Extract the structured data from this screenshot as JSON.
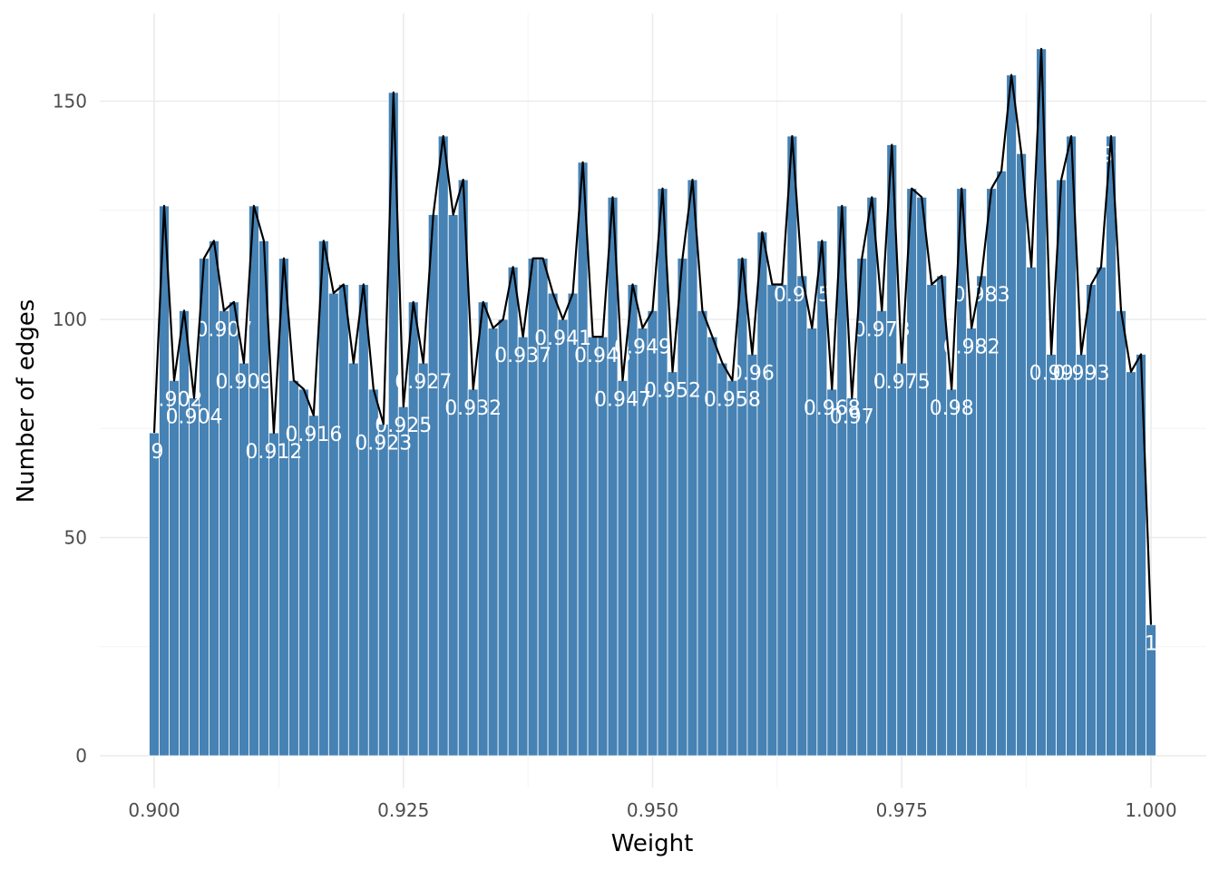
{
  "chart_data": {
    "type": "bar",
    "xlabel": "Weight",
    "ylabel": "Number of edges",
    "xlim": [
      0.9,
      1.0
    ],
    "ylim": [
      0,
      160
    ],
    "x_ticks": [
      "0.900",
      "0.925",
      "0.950",
      "0.975",
      "1.000"
    ],
    "x_tick_values": [
      0.9,
      0.925,
      0.95,
      0.975,
      1.0
    ],
    "y_ticks": [
      "0",
      "50",
      "100",
      "150"
    ],
    "y_tick_values": [
      0,
      50,
      100,
      150
    ],
    "grid": true,
    "bar_color": "#4682b4",
    "line_color": "#000000",
    "label_color": "#ffffff",
    "bin_width": 0.001,
    "x": [
      0.9,
      0.901,
      0.902,
      0.903,
      0.904,
      0.905,
      0.906,
      0.907,
      0.908,
      0.909,
      0.91,
      0.911,
      0.912,
      0.913,
      0.914,
      0.915,
      0.916,
      0.917,
      0.918,
      0.919,
      0.92,
      0.921,
      0.922,
      0.923,
      0.924,
      0.925,
      0.926,
      0.927,
      0.928,
      0.929,
      0.93,
      0.931,
      0.932,
      0.933,
      0.934,
      0.935,
      0.936,
      0.937,
      0.938,
      0.939,
      0.94,
      0.941,
      0.942,
      0.943,
      0.944,
      0.945,
      0.946,
      0.947,
      0.948,
      0.949,
      0.95,
      0.951,
      0.952,
      0.953,
      0.954,
      0.955,
      0.956,
      0.957,
      0.958,
      0.959,
      0.96,
      0.961,
      0.962,
      0.963,
      0.964,
      0.965,
      0.966,
      0.967,
      0.968,
      0.969,
      0.97,
      0.971,
      0.972,
      0.973,
      0.974,
      0.975,
      0.976,
      0.977,
      0.978,
      0.979,
      0.98,
      0.981,
      0.982,
      0.983,
      0.984,
      0.985,
      0.986,
      0.987,
      0.988,
      0.989,
      0.99,
      0.991,
      0.992,
      0.993,
      0.994,
      0.995,
      0.996,
      0.997,
      0.998,
      0.999,
      1.0
    ],
    "values": [
      74,
      126,
      86,
      102,
      82,
      114,
      118,
      102,
      104,
      90,
      126,
      118,
      74,
      114,
      86,
      84,
      78,
      118,
      106,
      108,
      90,
      108,
      84,
      76,
      152,
      80,
      104,
      90,
      124,
      142,
      124,
      132,
      84,
      104,
      98,
      100,
      112,
      96,
      114,
      114,
      106,
      100,
      106,
      136,
      96,
      96,
      128,
      86,
      108,
      98,
      102,
      130,
      88,
      114,
      132,
      102,
      96,
      90,
      86,
      114,
      92,
      120,
      108,
      108,
      142,
      110,
      98,
      118,
      84,
      126,
      82,
      114,
      128,
      102,
      140,
      90,
      130,
      128,
      108,
      110,
      84,
      130,
      98,
      110,
      130,
      134,
      156,
      138,
      112,
      162,
      92,
      132,
      142,
      92,
      108,
      112,
      142,
      102,
      88,
      92,
      30
    ],
    "labels": [
      ".9",
      "",
      "0.902",
      "",
      "0.904",
      "",
      "",
      "0.907",
      "",
      "0.909",
      "",
      "",
      "0.912",
      "",
      "",
      "",
      "0.916",
      "",
      "",
      "",
      "",
      "",
      "",
      "0.923",
      "",
      "0.925",
      "",
      "0.927",
      "",
      "",
      "",
      "",
      "0.932",
      "",
      "",
      "",
      "",
      "0.937",
      "",
      "",
      "",
      "0.941",
      "",
      "",
      "",
      "0.945",
      "",
      "0.947",
      "",
      "0.949",
      "",
      "",
      "0.952",
      "",
      "",
      "",
      "",
      "",
      "0.958",
      "",
      "0.96",
      "",
      "",
      "",
      "",
      "0.965",
      "",
      "",
      "0.968",
      "",
      "0.97",
      "",
      "",
      "0.973",
      "",
      "0.975",
      "",
      "",
      "",
      "",
      "0.98",
      "",
      "0.982",
      "0.983",
      "",
      "",
      "",
      "",
      "",
      "",
      "0.99",
      "",
      "",
      "0.993",
      "",
      "",
      "0.996",
      "",
      "",
      "",
      "1"
    ]
  }
}
